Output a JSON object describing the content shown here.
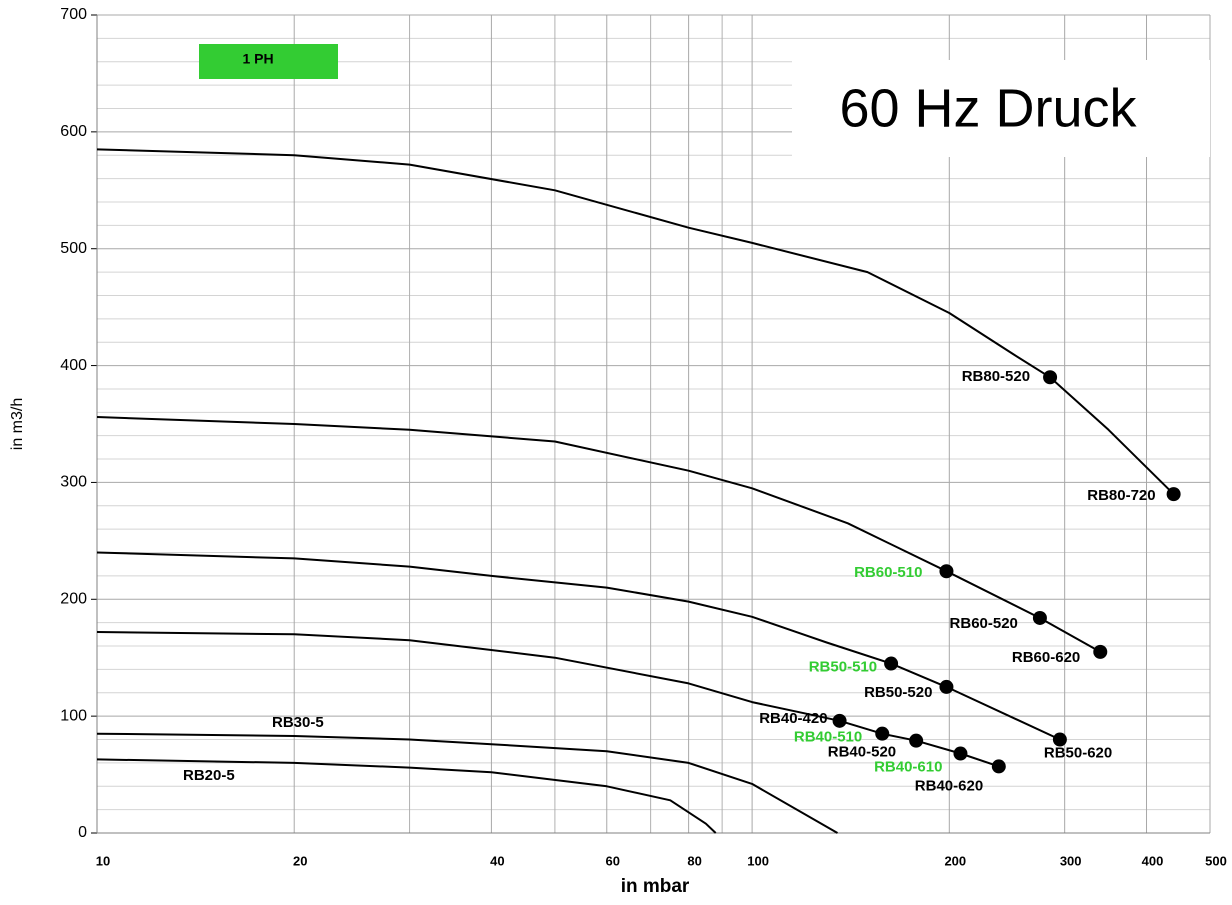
{
  "chart_data": {
    "type": "line",
    "title": "60 Hz Druck",
    "badge": "1 PH",
    "badge_color": "#33cc33",
    "x_label": "in mbar",
    "y_label": "in m3/h",
    "log_x": true,
    "grid": true,
    "xlim": [
      10,
      500
    ],
    "ylim": [
      0,
      700
    ],
    "xticks": [
      10,
      20,
      40,
      60,
      80,
      100,
      200,
      300,
      400,
      500
    ],
    "xminor": [
      30,
      50,
      70,
      90
    ],
    "yticks": [
      0,
      100,
      200,
      300,
      400,
      500,
      600,
      700
    ],
    "yminor": [
      20,
      40,
      60,
      80,
      120,
      140,
      160,
      180,
      220,
      240,
      260,
      280,
      320,
      340,
      360,
      380,
      420,
      440,
      460,
      480,
      520,
      540,
      560,
      580,
      620,
      640,
      660,
      680
    ],
    "line_color": "#000000",
    "series": [
      {
        "x": [
          10,
          20,
          30,
          50,
          80,
          100,
          150,
          200,
          250,
          285,
          350,
          440
        ],
        "values": [
          585,
          580,
          572,
          550,
          518,
          505,
          480,
          445,
          410,
          390,
          345,
          290
        ],
        "points": [
          {
            "x": 285,
            "y": 390,
            "label": "RB80-520",
            "color": "#000000"
          },
          {
            "x": 440,
            "y": 290,
            "label": "RB80-720",
            "color": "#000000"
          }
        ]
      },
      {
        "x": [
          10,
          20,
          30,
          50,
          80,
          100,
          140,
          198,
          275,
          340
        ],
        "values": [
          356,
          350,
          345,
          335,
          310,
          295,
          265,
          224,
          184,
          155
        ],
        "points": [
          {
            "x": 198,
            "y": 224,
            "label": "RB60-510",
            "color": "#33cc33"
          },
          {
            "x": 275,
            "y": 184,
            "label": "RB60-520",
            "color": "#000000"
          },
          {
            "x": 340,
            "y": 155,
            "label": "RB60-620",
            "color": "#000000"
          }
        ]
      },
      {
        "x": [
          10,
          20,
          30,
          40,
          60,
          80,
          100,
          130,
          163,
          198,
          295
        ],
        "values": [
          240,
          235,
          228,
          220,
          210,
          198,
          185,
          163,
          145,
          125,
          80
        ],
        "points": [
          {
            "x": 163,
            "y": 145,
            "label": "RB50-510",
            "color": "#33cc33"
          },
          {
            "x": 198,
            "y": 125,
            "label": "RB50-520",
            "color": "#000000"
          },
          {
            "x": 295,
            "y": 80,
            "label": "RB50-620",
            "color": "#000000"
          }
        ]
      },
      {
        "x": [
          10,
          20,
          30,
          50,
          80,
          100,
          136,
          158,
          178,
          208,
          238
        ],
        "values": [
          172,
          170,
          165,
          150,
          128,
          112,
          96,
          85,
          79,
          68,
          57
        ],
        "points": [
          {
            "x": 136,
            "y": 96,
            "label": "RB40-420",
            "color": "#000000"
          },
          {
            "x": 158,
            "y": 85,
            "label": "RB40-510",
            "color": "#33cc33"
          },
          {
            "x": 178,
            "y": 79,
            "label": "RB40-520",
            "color": "#000000"
          },
          {
            "x": 208,
            "y": 68,
            "label": "RB40-610",
            "color": "#33cc33"
          },
          {
            "x": 238,
            "y": 57,
            "label": "RB40-620",
            "color": "#000000"
          }
        ]
      },
      {
        "x": [
          10,
          20,
          30,
          40,
          60,
          80,
          100,
          135
        ],
        "values": [
          85,
          83,
          80,
          76,
          70,
          60,
          42,
          0
        ],
        "label": "RB30-5"
      },
      {
        "x": [
          10,
          20,
          30,
          40,
          60,
          75,
          85,
          88
        ],
        "values": [
          63,
          60,
          56,
          52,
          40,
          28,
          8,
          0
        ],
        "label": "RB20-5"
      }
    ]
  }
}
